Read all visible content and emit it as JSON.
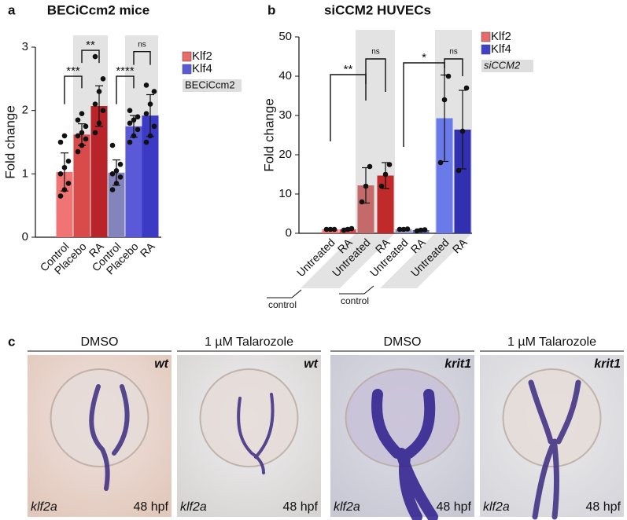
{
  "chart_data": [
    {
      "type": "bar",
      "panel_label": "a",
      "title": "BECiCcm2 mice",
      "y_label": "Fold change",
      "categories": [
        "Control",
        "Placebo",
        "RA",
        "Control",
        "Placebo",
        "RA"
      ],
      "values": [
        1.03,
        1.62,
        2.07,
        1.02,
        1.75,
        1.92
      ],
      "errors": [
        0.3,
        0.17,
        0.32,
        0.2,
        0.17,
        0.33
      ],
      "points": [
        [
          0.65,
          0.75,
          0.85,
          1.0,
          1.1,
          1.2,
          1.5,
          1.6
        ],
        [
          1.35,
          1.45,
          1.55,
          1.6,
          1.65,
          1.75,
          1.85,
          1.95
        ],
        [
          1.65,
          1.8,
          2.0,
          2.1,
          2.3,
          2.5,
          2.85
        ],
        [
          0.75,
          0.85,
          0.95,
          1.0,
          1.05,
          1.15,
          1.45
        ],
        [
          1.5,
          1.6,
          1.7,
          1.8,
          1.85,
          1.9,
          2.0
        ],
        [
          1.5,
          1.6,
          1.75,
          1.95,
          2.1,
          2.3,
          2.4
        ]
      ],
      "colors": [
        "#f07474",
        "#d94a4a",
        "#b8242a",
        "#8484bc",
        "#5a5ad8",
        "#3a3ac4"
      ],
      "ylim": [
        0,
        3
      ],
      "yticks": [
        0,
        1,
        2,
        3
      ],
      "annotations": [
        "***",
        "**",
        "****",
        "ns"
      ],
      "legend": [
        {
          "name": "Klf2",
          "color": "#e86a6a"
        },
        {
          "name": "Klf4",
          "color": "#5a5ad8"
        }
      ],
      "legend_note": "BECiCcm2"
    },
    {
      "type": "bar",
      "panel_label": "b",
      "title": "siCCM2 HUVECs",
      "y_label": "Fold change",
      "categories": [
        "Untreated",
        "RA",
        "Untreated",
        "RA",
        "Untreated",
        "RA",
        "Untreated",
        "RA"
      ],
      "values": [
        1,
        1,
        12.2,
        14.7,
        1,
        0.8,
        29.3,
        26.4
      ],
      "errors": [
        0.1,
        0.3,
        4.5,
        3.3,
        0.2,
        0.3,
        11,
        10
      ],
      "points": [
        [
          1,
          1,
          1
        ],
        [
          0.8,
          1,
          1.2
        ],
        [
          8,
          12,
          17
        ],
        [
          12,
          15,
          17.5
        ],
        [
          1,
          1,
          1.1
        ],
        [
          0.6,
          0.8,
          0.9
        ],
        [
          18,
          34,
          40
        ],
        [
          16,
          26,
          37
        ]
      ],
      "colors": [
        "#f07474",
        "#d84848",
        "#c46a6a",
        "#c02a2a",
        "#9494c4",
        "#6060b8",
        "#6a7ae8",
        "#3030b0"
      ],
      "ylim": [
        0,
        50
      ],
      "yticks": [
        0,
        10,
        20,
        30,
        40,
        50
      ],
      "annotations": [
        "**",
        "ns",
        "*",
        "ns"
      ],
      "group_labels": [
        "control",
        "control"
      ],
      "legend": [
        {
          "name": "Klf2",
          "color": "#e86a6a"
        },
        {
          "name": "Klf4",
          "color": "#4040c8"
        }
      ],
      "legend_note": "siCCM2"
    }
  ],
  "panel_c": {
    "label": "c",
    "panels": [
      {
        "treatment": "DMSO",
        "genotype": "wt",
        "probe": "klf2a",
        "stage": "48 hpf"
      },
      {
        "treatment": "1 µM Talarozole",
        "genotype": "wt",
        "probe": "klf2a",
        "stage": "48 hpf"
      },
      {
        "treatment": "DMSO",
        "genotype": "krit1",
        "probe": "klf2a",
        "stage": "48 hpf"
      },
      {
        "treatment": "1 µM Talarozole",
        "genotype": "krit1",
        "probe": "klf2a",
        "stage": "48 hpf"
      }
    ]
  }
}
